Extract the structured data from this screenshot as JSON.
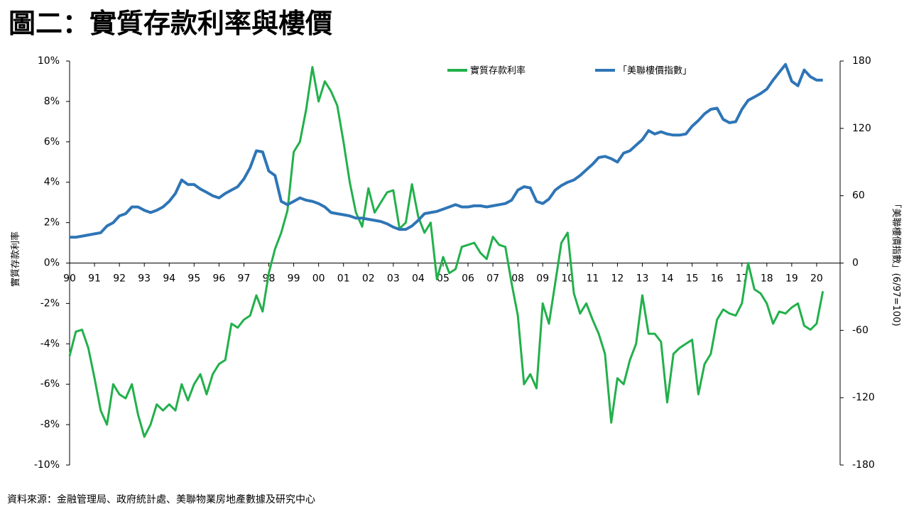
{
  "chart_data": {
    "type": "line",
    "title": "圖二：實質存款利率與樓價",
    "source": "資料來源：金融管理局、政府統計處、美聯物業房地產數據及研究中心",
    "ylabel": "實質存款利率",
    "y2label": "「美聯樓價指數」(6/97=100)",
    "x": [
      1990,
      1990.25,
      1990.5,
      1990.75,
      1991,
      1991.25,
      1991.5,
      1991.75,
      1992,
      1992.25,
      1992.5,
      1992.75,
      1993,
      1993.25,
      1993.5,
      1993.75,
      1994,
      1994.25,
      1994.5,
      1994.75,
      1995,
      1995.25,
      1995.5,
      1995.75,
      1996,
      1996.25,
      1996.5,
      1996.75,
      1997,
      1997.25,
      1997.5,
      1997.75,
      1998,
      1998.25,
      1998.5,
      1998.75,
      1999,
      1999.25,
      1999.5,
      1999.75,
      2000,
      2000.25,
      2000.5,
      2000.75,
      2001,
      2001.25,
      2001.5,
      2001.75,
      2002,
      2002.25,
      2002.5,
      2002.75,
      2003,
      2003.25,
      2003.5,
      2003.75,
      2004,
      2004.25,
      2004.5,
      2004.75,
      2005,
      2005.25,
      2005.5,
      2005.75,
      2006,
      2006.25,
      2006.5,
      2006.75,
      2007,
      2007.25,
      2007.5,
      2007.75,
      2008,
      2008.25,
      2008.5,
      2008.75,
      2009,
      2009.25,
      2009.5,
      2009.75,
      2010,
      2010.25,
      2010.5,
      2010.75,
      2011,
      2011.25,
      2011.5,
      2011.75,
      2012,
      2012.25,
      2012.5,
      2012.75,
      2013,
      2013.25,
      2013.5,
      2013.75,
      2014,
      2014.25,
      2014.5,
      2014.75,
      2015,
      2015.25,
      2015.5,
      2015.75,
      2016,
      2016.25,
      2016.5,
      2016.75,
      2017,
      2017.25,
      2017.5,
      2017.75,
      2018,
      2018.25,
      2018.5,
      2018.75,
      2019,
      2019.25,
      2019.5,
      2019.75,
      2020,
      2020.25
    ],
    "series": [
      {
        "name": "實質存款利率",
        "color": "#22b04b",
        "values": [
          -4.6,
          -3.4,
          -3.3,
          -4.2,
          -5.7,
          -7.3,
          -8.0,
          -6.0,
          -6.5,
          -6.7,
          -6.0,
          -7.5,
          -8.6,
          -8.0,
          -7.0,
          -7.3,
          -7.0,
          -7.3,
          -6.0,
          -6.8,
          -6.0,
          -5.5,
          -6.5,
          -5.5,
          -5.0,
          -4.8,
          -3.0,
          -3.2,
          -2.8,
          -2.6,
          -1.6,
          -2.4,
          -0.5,
          0.7,
          1.5,
          2.6,
          5.5,
          6.0,
          7.6,
          9.7,
          8.0,
          9.0,
          8.5,
          7.8,
          6.0,
          4.0,
          2.5,
          1.8,
          3.7,
          2.5,
          3.0,
          3.5,
          3.6,
          1.7,
          2.0,
          3.9,
          2.3,
          1.5,
          2.0,
          -0.8,
          0.3,
          -0.5,
          -0.3,
          0.8,
          0.9,
          1.0,
          0.5,
          0.2,
          1.3,
          0.9,
          0.8,
          -1.0,
          -2.6,
          -6.0,
          -5.5,
          -6.2,
          -2.0,
          -3.0,
          -1.0,
          1.0,
          1.5,
          -1.5,
          -2.5,
          -2.0,
          -2.8,
          -3.5,
          -4.5,
          -7.9,
          -5.7,
          -6.0,
          -4.8,
          -4.0,
          -1.6,
          -3.5,
          -3.5,
          -3.9,
          -6.9,
          -4.5,
          -4.2,
          -4.0,
          -3.8,
          -6.5,
          -5.0,
          -4.5,
          -2.8,
          -2.3,
          -2.5,
          -2.6,
          -2.0,
          0.0,
          -1.3,
          -1.5,
          -2.0,
          -3.0,
          -2.4,
          -2.5,
          -2.2,
          -2.0,
          -3.1,
          -3.3,
          -3.0,
          -1.4
        ]
      },
      {
        "name": "「美聯樓價指數」",
        "color": "#2e75b6",
        "axis": "y2",
        "values": [
          23,
          23,
          24,
          25,
          26,
          27,
          33,
          36,
          42,
          44,
          50,
          50,
          47,
          45,
          47,
          50,
          55,
          62,
          74,
          70,
          70,
          66,
          63,
          60,
          58,
          62,
          65,
          68,
          75,
          85,
          100,
          99,
          82,
          78,
          55,
          52,
          55,
          58,
          56,
          55,
          53,
          50,
          45,
          44,
          43,
          42,
          40,
          40,
          39,
          38,
          37,
          35,
          32,
          30,
          30,
          33,
          38,
          44,
          45,
          46,
          48,
          50,
          52,
          50,
          50,
          51,
          51,
          50,
          51,
          52,
          53,
          56,
          65,
          68,
          67,
          55,
          53,
          57,
          65,
          69,
          72,
          74,
          78,
          83,
          88,
          94,
          95,
          93,
          90,
          98,
          100,
          105,
          110,
          118,
          115,
          117,
          115,
          114,
          114,
          115,
          122,
          127,
          133,
          137,
          138,
          128,
          125,
          126,
          137,
          145,
          148,
          151,
          155,
          163,
          170,
          177,
          162,
          158,
          172,
          166,
          163,
          163
        ]
      }
    ],
    "xlim": [
      1990,
      2021
    ],
    "xticks": [
      {
        "value": 1990,
        "label": "90"
      },
      {
        "value": 1991,
        "label": "91"
      },
      {
        "value": 1992,
        "label": "92"
      },
      {
        "value": 1993,
        "label": "93"
      },
      {
        "value": 1994,
        "label": "94"
      },
      {
        "value": 1995,
        "label": "95"
      },
      {
        "value": 1996,
        "label": "96"
      },
      {
        "value": 1997,
        "label": "97"
      },
      {
        "value": 1998,
        "label": "98"
      },
      {
        "value": 1999,
        "label": "99"
      },
      {
        "value": 2000,
        "label": "00"
      },
      {
        "value": 2001,
        "label": "01"
      },
      {
        "value": 2002,
        "label": "02"
      },
      {
        "value": 2003,
        "label": "03"
      },
      {
        "value": 2004,
        "label": "04"
      },
      {
        "value": 2005,
        "label": "05"
      },
      {
        "value": 2006,
        "label": "06"
      },
      {
        "value": 2007,
        "label": "07"
      },
      {
        "value": 2008,
        "label": "08"
      },
      {
        "value": 2009,
        "label": "09"
      },
      {
        "value": 2010,
        "label": "10"
      },
      {
        "value": 2011,
        "label": "11"
      },
      {
        "value": 2012,
        "label": "12"
      },
      {
        "value": 2013,
        "label": "13"
      },
      {
        "value": 2014,
        "label": "14"
      },
      {
        "value": 2015,
        "label": "15"
      },
      {
        "value": 2016,
        "label": "16"
      },
      {
        "value": 2017,
        "label": "17"
      },
      {
        "value": 2018,
        "label": "18"
      },
      {
        "value": 2019,
        "label": "19"
      },
      {
        "value": 2020,
        "label": "20"
      }
    ],
    "ylim": [
      -10,
      10
    ],
    "yticks": [
      {
        "value": -10,
        "label": "-10%"
      },
      {
        "value": -8,
        "label": "-8%"
      },
      {
        "value": -6,
        "label": "-6%"
      },
      {
        "value": -4,
        "label": "-4%"
      },
      {
        "value": -2,
        "label": "-2%"
      },
      {
        "value": 0,
        "label": "0%"
      },
      {
        "value": 2,
        "label": "2%"
      },
      {
        "value": 4,
        "label": "4%"
      },
      {
        "value": 6,
        "label": "6%"
      },
      {
        "value": 8,
        "label": "8%"
      },
      {
        "value": 10,
        "label": "10%"
      }
    ],
    "y2lim": [
      -180,
      180
    ],
    "y2ticks": [
      -180,
      -120,
      -60,
      0,
      60,
      120,
      180
    ],
    "legend": "top"
  }
}
